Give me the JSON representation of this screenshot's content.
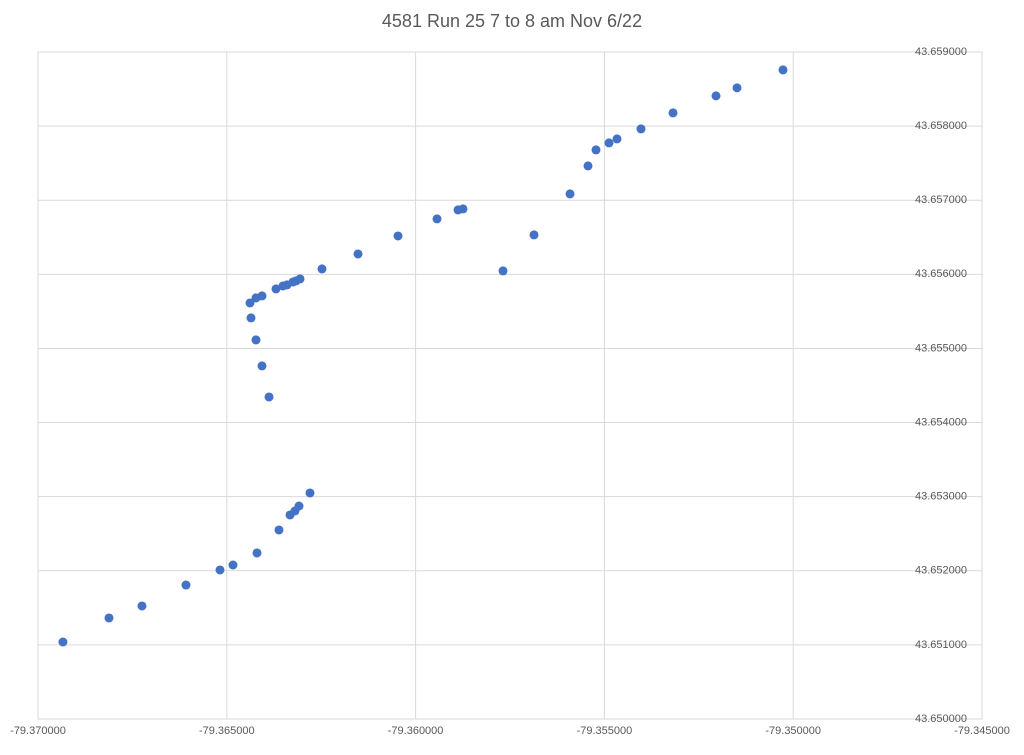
{
  "chart_data": {
    "type": "scatter",
    "title": "4581 Run 25 7 to 8 am Nov 6/22",
    "color": "#4472c4",
    "grid": true,
    "x": [
      -79.36934,
      -79.36812,
      -79.367246,
      -79.366081,
      -79.36518,
      -79.364836,
      -79.3642,
      -79.363618,
      -79.363326,
      -79.363194,
      -79.363088,
      -79.362797,
      -79.363882,
      -79.364068,
      -79.364227,
      -79.364359,
      -79.364386,
      -79.364227,
      -79.364068,
      -79.363697,
      -79.363512,
      -79.363406,
      -79.363247,
      -79.363167,
      -79.363061,
      -79.362479,
      -79.361525,
      -79.360466,
      -79.359433,
      -79.358877,
      -79.358745,
      -79.357685,
      -79.356864,
      -79.355911,
      -79.355434,
      -79.355222,
      -79.354878,
      -79.354666,
      -79.354031,
      -79.353183,
      -79.352044,
      -79.351488,
      -79.35027
    ],
    "values": [
      43.651039,
      43.651363,
      43.651525,
      43.651808,
      43.652011,
      43.652078,
      43.65224,
      43.652551,
      43.652753,
      43.652807,
      43.652874,
      43.65305,
      43.654345,
      43.654764,
      43.655115,
      43.655412,
      43.655614,
      43.655682,
      43.655709,
      43.655803,
      43.655843,
      43.655857,
      43.655897,
      43.655911,
      43.655938,
      43.656073,
      43.656275,
      43.656518,
      43.656748,
      43.656869,
      43.656883,
      43.656046,
      43.656532,
      43.657085,
      43.657463,
      43.657679,
      43.657773,
      43.657827,
      43.657962,
      43.658178,
      43.658408,
      43.658516,
      43.658758
    ],
    "xlim": [
      -79.37,
      -79.345
    ],
    "xticks": [
      {
        "value": -79.37,
        "label": "-79.370000"
      },
      {
        "value": -79.365,
        "label": "-79.365000"
      },
      {
        "value": -79.36,
        "label": "-79.360000"
      },
      {
        "value": -79.355,
        "label": "-79.355000"
      },
      {
        "value": -79.35,
        "label": "-79.350000"
      },
      {
        "value": -79.345,
        "label": "-79.345000"
      }
    ],
    "ylim": [
      43.65,
      43.659
    ],
    "yticks": [
      {
        "value": 43.65,
        "label": "43.650000"
      },
      {
        "value": 43.651,
        "label": "43.651000"
      },
      {
        "value": 43.652,
        "label": "43.652000"
      },
      {
        "value": 43.653,
        "label": "43.653000"
      },
      {
        "value": 43.654,
        "label": "43.654000"
      },
      {
        "value": 43.655,
        "label": "43.655000"
      },
      {
        "value": 43.656,
        "label": "43.656000"
      },
      {
        "value": 43.657,
        "label": "43.657000"
      },
      {
        "value": 43.658,
        "label": "43.658000"
      },
      {
        "value": 43.659,
        "label": "43.659000"
      }
    ]
  }
}
